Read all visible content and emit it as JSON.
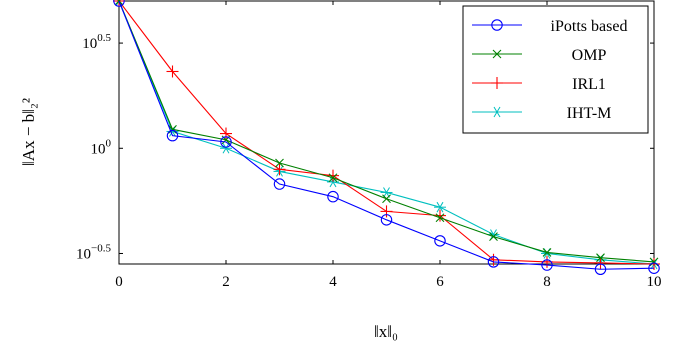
{
  "chart_data": {
    "type": "line",
    "xlabel": "‖x‖₀",
    "ylabel": "‖Ax − b‖₂²",
    "xlim": [
      0,
      10
    ],
    "ylim_log10": [
      -0.55,
      0.7
    ],
    "y_scale": "log",
    "x_ticks": [
      0,
      2,
      4,
      6,
      8,
      10
    ],
    "x_tick_labels": [
      "0",
      "2",
      "4",
      "6",
      "8",
      "10"
    ],
    "y_ticks_log10": [
      0.5,
      0,
      -0.5
    ],
    "y_tick_base": "10",
    "y_tick_exponents": [
      "0.5",
      "0",
      "−0.5"
    ],
    "legend_position": "top-right",
    "grid": false,
    "x": [
      0,
      1,
      2,
      3,
      4,
      5,
      6,
      7,
      8,
      9,
      10
    ],
    "series": [
      {
        "name": "iPotts based",
        "color": "#0000ff",
        "marker": "circle",
        "log10_values": [
          0.7,
          0.06,
          0.03,
          -0.17,
          -0.23,
          -0.34,
          -0.44,
          -0.54,
          -0.555,
          -0.575,
          -0.57
        ]
      },
      {
        "name": "OMP",
        "color": "#008000",
        "marker": "x",
        "log10_values": [
          0.7,
          0.09,
          0.04,
          -0.07,
          -0.14,
          -0.24,
          -0.33,
          -0.42,
          -0.495,
          -0.52,
          -0.54
        ]
      },
      {
        "name": "IRL1",
        "color": "#ff0000",
        "marker": "plus",
        "log10_values": [
          0.7,
          0.365,
          0.07,
          -0.1,
          -0.13,
          -0.3,
          -0.32,
          -0.53,
          -0.54,
          -0.545,
          -0.55
        ]
      },
      {
        "name": "IHT-M",
        "color": "#00bfbf",
        "marker": "asterisk",
        "log10_values": [
          0.7,
          0.08,
          0.0,
          -0.11,
          -0.16,
          -0.21,
          -0.28,
          -0.41,
          -0.5,
          -0.53,
          -0.55
        ]
      }
    ]
  }
}
